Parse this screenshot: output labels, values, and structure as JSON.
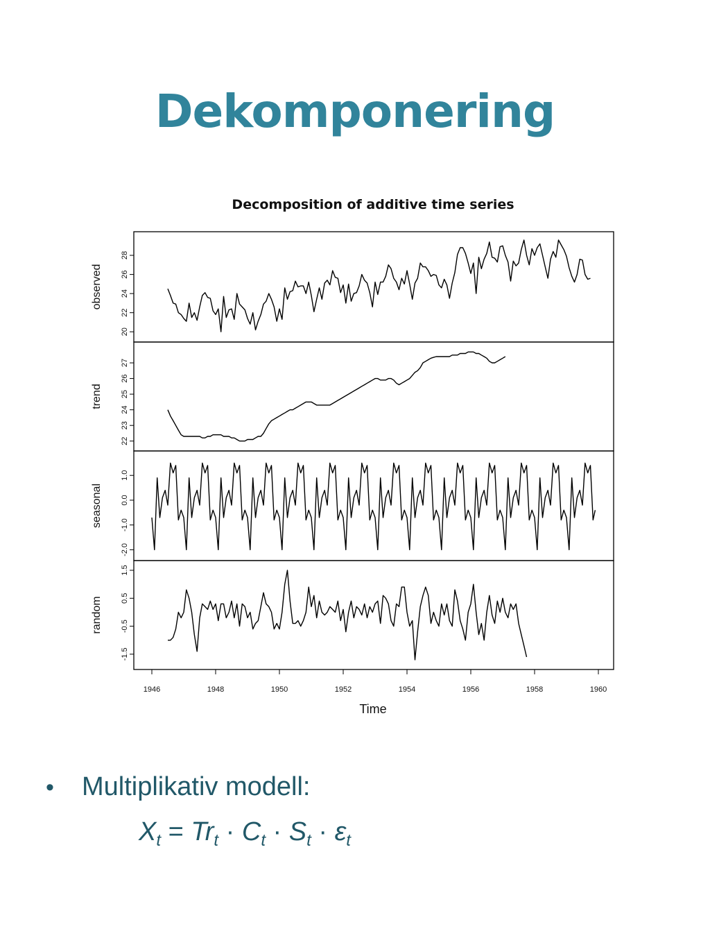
{
  "slide": {
    "title": "Dekomponering",
    "bullet": "Multiplikativ modell:",
    "formula": {
      "X": "X",
      "t": "t",
      "eq": "=",
      "Tr": "Tr",
      "dot": "·",
      "C": "C",
      "S": "S",
      "eps": "ε"
    }
  },
  "chart_data": {
    "type": "line",
    "title": "Decomposition of additive time series",
    "xlabel": "Time",
    "xlim": [
      1946,
      1960
    ],
    "x_ticks": [
      "1946",
      "1948",
      "1950",
      "1952",
      "1954",
      "1956",
      "1958",
      "1960"
    ],
    "grid": false,
    "panels": [
      {
        "name": "observed",
        "ylim": [
          19.8,
          29.6
        ],
        "y_ticks": [
          "20",
          "22",
          "24",
          "26",
          "28"
        ],
        "x_start": 1946.5,
        "step": 0.0833333,
        "values": [
          24.5,
          23.8,
          23.0,
          22.9,
          22.0,
          21.8,
          21.4,
          21.1,
          23.0,
          21.5,
          22.0,
          21.2,
          22.6,
          23.8,
          24.1,
          23.6,
          23.5,
          22.2,
          21.8,
          22.4,
          20.0,
          23.7,
          21.5,
          22.3,
          22.4,
          21.3,
          24.0,
          22.9,
          22.6,
          22.3,
          21.4,
          20.8,
          22.0,
          20.2,
          21.1,
          21.8,
          22.9,
          23.2,
          24.0,
          23.4,
          22.6,
          21.1,
          22.4,
          21.3,
          24.6,
          23.4,
          24.2,
          24.3,
          25.3,
          24.7,
          24.8,
          24.8,
          24.0,
          25.2,
          23.8,
          22.1,
          23.4,
          24.6,
          23.4,
          25.1,
          25.4,
          24.9,
          26.4,
          25.7,
          25.6,
          24.1,
          24.9,
          23.0,
          25.0,
          23.2,
          24.0,
          24.1,
          24.8,
          26.0,
          25.4,
          25.1,
          24.1,
          22.6,
          25.2,
          23.9,
          25.2,
          25.2,
          25.8,
          27.0,
          26.6,
          25.6,
          25.2,
          24.4,
          25.6,
          25.0,
          26.4,
          25.0,
          23.4,
          25.1,
          25.6,
          27.2,
          26.8,
          26.8,
          26.4,
          25.8,
          26.0,
          25.9,
          24.9,
          24.6,
          25.5,
          24.9,
          23.5,
          25.1,
          26.2,
          28.1,
          28.8,
          28.8,
          28.2,
          27.2,
          26.1,
          27.2,
          24.0,
          27.8,
          26.6,
          27.6,
          28.2,
          29.4,
          27.8,
          27.7,
          27.3,
          28.9,
          29.0,
          28.0,
          27.3,
          25.3,
          27.4,
          26.9,
          27.2,
          28.6,
          29.6,
          28.0,
          27.0,
          28.7,
          28.0,
          28.8,
          29.2,
          28.0,
          26.8,
          25.6,
          27.6,
          28.4,
          27.8,
          29.6,
          29.1,
          28.6,
          27.9,
          26.7,
          25.8,
          25.2,
          26.0,
          27.6,
          27.5,
          26.0,
          25.5,
          25.6
        ]
      },
      {
        "name": "trend",
        "ylim": [
          21.9,
          27.8
        ],
        "y_ticks": [
          "22",
          "23",
          "24",
          "25",
          "26",
          "27"
        ],
        "x_start": 1946.5,
        "step": 0.0833333,
        "values": [
          24.0,
          23.6,
          23.3,
          23.0,
          22.7,
          22.4,
          22.3,
          22.3,
          22.3,
          22.3,
          22.3,
          22.3,
          22.3,
          22.2,
          22.2,
          22.3,
          22.3,
          22.4,
          22.4,
          22.4,
          22.4,
          22.3,
          22.3,
          22.3,
          22.2,
          22.2,
          22.1,
          22.0,
          22.0,
          22.0,
          22.1,
          22.1,
          22.1,
          22.2,
          22.3,
          22.3,
          22.5,
          22.8,
          23.1,
          23.3,
          23.4,
          23.5,
          23.6,
          23.7,
          23.8,
          23.9,
          24.0,
          24.0,
          24.1,
          24.2,
          24.3,
          24.4,
          24.5,
          24.5,
          24.5,
          24.4,
          24.3,
          24.3,
          24.3,
          24.3,
          24.3,
          24.3,
          24.4,
          24.5,
          24.6,
          24.7,
          24.8,
          24.9,
          25.0,
          25.1,
          25.2,
          25.3,
          25.4,
          25.5,
          25.6,
          25.7,
          25.8,
          25.9,
          26.0,
          26.0,
          25.9,
          25.9,
          25.9,
          26.0,
          26.0,
          25.9,
          25.7,
          25.6,
          25.7,
          25.8,
          25.9,
          26.0,
          26.2,
          26.4,
          26.5,
          26.7,
          27.0,
          27.1,
          27.2,
          27.3,
          27.35,
          27.4,
          27.4,
          27.4,
          27.4,
          27.4,
          27.4,
          27.5,
          27.5,
          27.5,
          27.6,
          27.6,
          27.6,
          27.7,
          27.7,
          27.7,
          27.6,
          27.6,
          27.5,
          27.4,
          27.3,
          27.1,
          27.0,
          27.0,
          27.1,
          27.2,
          27.3,
          27.4
        ]
      },
      {
        "name": "seasonal",
        "ylim": [
          -2.1,
          1.65
        ],
        "y_ticks": [
          "-2.0",
          "-1.0",
          "0.0",
          "1.0"
        ],
        "y_tick_values": [
          -2.0,
          -1.0,
          0.0,
          1.0
        ],
        "period_start": 1946.0,
        "period_step": 0.0833333,
        "cycle": [
          -0.7,
          -2.0,
          0.9,
          -0.7,
          0.1,
          0.4,
          -0.2,
          1.5,
          1.1,
          1.4,
          -0.8,
          -0.4,
          -2.0
        ],
        "end_x": 1959.9,
        "end_value": -0.4
      },
      {
        "name": "random",
        "ylim": [
          -1.75,
          1.55
        ],
        "y_ticks": [
          "-1.5",
          "-0.5",
          "0.5",
          "1.5"
        ],
        "y_tick_values": [
          -1.5,
          -0.5,
          0.5,
          1.5
        ],
        "x_start": 1946.5,
        "step": 0.0833333,
        "values": [
          -1.0,
          -1.0,
          -0.9,
          -0.6,
          0.0,
          -0.2,
          0.0,
          0.8,
          0.5,
          0.0,
          -0.8,
          -1.4,
          -0.2,
          0.3,
          0.2,
          0.1,
          0.4,
          0.1,
          0.3,
          -0.3,
          0.3,
          0.3,
          -0.2,
          0.0,
          0.4,
          -0.2,
          0.3,
          -0.5,
          0.3,
          0.2,
          -0.2,
          0.0,
          -0.6,
          -0.4,
          -0.3,
          0.2,
          0.7,
          0.3,
          0.2,
          0.0,
          -0.6,
          -0.4,
          -0.6,
          0.0,
          1.0,
          1.5,
          0.4,
          -0.4,
          -0.4,
          -0.3,
          -0.5,
          -0.3,
          0.0,
          0.9,
          0.2,
          0.6,
          -0.2,
          0.4,
          0.0,
          -0.1,
          0.0,
          0.2,
          0.1,
          0.0,
          0.4,
          -0.3,
          0.1,
          -0.7,
          0.0,
          0.4,
          -0.2,
          0.2,
          0.1,
          -0.1,
          0.3,
          -0.2,
          0.2,
          0.0,
          0.3,
          0.4,
          -0.4,
          0.6,
          0.5,
          0.3,
          -0.3,
          -0.5,
          0.3,
          0.2,
          0.9,
          0.9,
          0.0,
          -0.5,
          -0.3,
          -1.7,
          -0.7,
          0.2,
          0.6,
          0.9,
          0.6,
          -0.4,
          0.0,
          -0.3,
          -0.5,
          0.3,
          -0.1,
          0.3,
          -0.3,
          -0.5,
          0.8,
          0.4,
          -0.3,
          -0.6,
          -1.0,
          0.0,
          0.3,
          1.0,
          0.0,
          -0.8,
          -0.4,
          -1.0,
          0.0,
          0.6,
          -0.1,
          -0.4,
          0.4,
          0.0,
          0.5,
          0.0,
          -0.2,
          0.3,
          0.1,
          0.3,
          -0.4,
          -0.8,
          -1.2,
          -1.6
        ]
      }
    ]
  }
}
